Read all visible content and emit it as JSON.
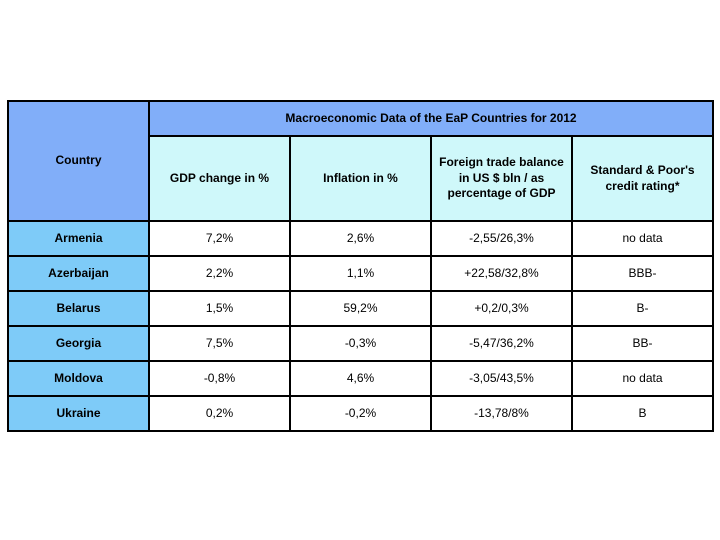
{
  "slide": {
    "background": "#FFFFFF"
  },
  "chart_data": {
    "type": "table",
    "title": "Macroeconomic Data of the EaP Countries for 2012",
    "corner_header": "Country",
    "columns": [
      "GDP change in %",
      "Inflation in %",
      "Foreign trade balance in US $ bln / as percentage of GDP",
      "Standard & Poor's credit rating*"
    ],
    "rows": [
      [
        "Armenia",
        "7,2%",
        "2,6%",
        "-2,55/26,3%",
        "no data"
      ],
      [
        "Azerbaijan",
        "2,2%",
        "1,1%",
        "+22,58/32,8%",
        "BBB-"
      ],
      [
        "Belarus",
        "1,5%",
        "59,2%",
        "+0,2/0,3%",
        "B-"
      ],
      [
        "Georgia",
        "7,5%",
        "-0,3%",
        "-5,47/36,2%",
        "BB-"
      ],
      [
        "Moldova",
        "-0,8%",
        "4,6%",
        "-3,05/43,5%",
        "no data"
      ],
      [
        "Ukraine",
        "0,2%",
        "-0,2%",
        "-13,78/8%",
        "B"
      ]
    ],
    "colors": {
      "title_bg": "#81AEF9",
      "subheader_bg": "#CFF8FA",
      "country_bg": "#7ECBF8",
      "data_bg": "#FFFFFF",
      "border": "#000000"
    }
  }
}
